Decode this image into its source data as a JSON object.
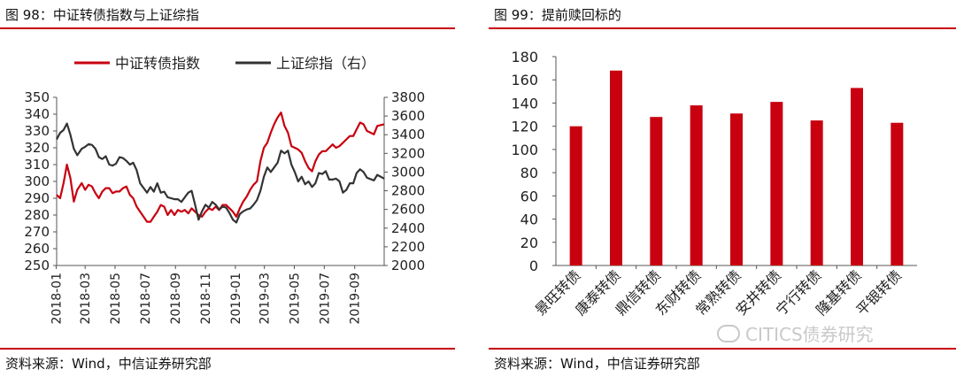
{
  "left": {
    "title": "图 98：中证转债指数与上证综指",
    "source": "资料来源：Wind，中信证券研究部"
  },
  "right": {
    "title": "图 99：提前赎回标的",
    "source": "资料来源：Wind，中信证券研究部",
    "watermark": "CITICS债券研究"
  },
  "colors": {
    "red": "#c8000f",
    "dark": "#333333",
    "rule": "#c8000f"
  },
  "chart_data": [
    {
      "type": "line",
      "title": "",
      "legend_position": "top",
      "x_tick_labels": [
        "2018-01",
        "2018-03",
        "2018-05",
        "2018-07",
        "2018-09",
        "2018-11",
        "2019-01",
        "2019-03",
        "2019-05",
        "2019-07",
        "2019-09"
      ],
      "x_range": [
        "2018-01-02",
        "2019-10-31"
      ],
      "ylim_left": [
        250,
        350
      ],
      "yticks_left": [
        "250",
        "260",
        "270",
        "280",
        "290",
        "300",
        "310",
        "320",
        "330",
        "340",
        "350"
      ],
      "ylim_right": [
        2000,
        3800
      ],
      "yticks_right": [
        "2000",
        "2200",
        "2400",
        "2600",
        "2800",
        "3000",
        "3200",
        "3400",
        "3600",
        "3800"
      ],
      "series": [
        {
          "name": "中证转债指数",
          "axis": "left",
          "color": "#c8000f",
          "points": [
            [
              "2018-01-02",
              292
            ],
            [
              "2018-01-09",
              290
            ],
            [
              "2018-01-16",
              299
            ],
            [
              "2018-01-23",
              310
            ],
            [
              "2018-01-30",
              302
            ],
            [
              "2018-02-06",
              288
            ],
            [
              "2018-02-13",
              295
            ],
            [
              "2018-02-22",
              299
            ],
            [
              "2018-03-01",
              295
            ],
            [
              "2018-03-08",
              298
            ],
            [
              "2018-03-15",
              297
            ],
            [
              "2018-03-22",
              293
            ],
            [
              "2018-03-29",
              290
            ],
            [
              "2018-04-05",
              294
            ],
            [
              "2018-04-12",
              296
            ],
            [
              "2018-04-19",
              296
            ],
            [
              "2018-04-26",
              293
            ],
            [
              "2018-05-03",
              294
            ],
            [
              "2018-05-10",
              294
            ],
            [
              "2018-05-17",
              296
            ],
            [
              "2018-05-24",
              297
            ],
            [
              "2018-05-31",
              292
            ],
            [
              "2018-06-07",
              290
            ],
            [
              "2018-06-14",
              285
            ],
            [
              "2018-06-21",
              282
            ],
            [
              "2018-06-28",
              279
            ],
            [
              "2018-07-05",
              276
            ],
            [
              "2018-07-12",
              276
            ],
            [
              "2018-07-19",
              279
            ],
            [
              "2018-07-26",
              282
            ],
            [
              "2018-08-02",
              286
            ],
            [
              "2018-08-09",
              285
            ],
            [
              "2018-08-16",
              280
            ],
            [
              "2018-08-23",
              283
            ],
            [
              "2018-08-30",
              280
            ],
            [
              "2018-09-06",
              283
            ],
            [
              "2018-09-13",
              282
            ],
            [
              "2018-09-20",
              283
            ],
            [
              "2018-09-27",
              281
            ],
            [
              "2018-10-04",
              284
            ],
            [
              "2018-10-11",
              282
            ],
            [
              "2018-10-18",
              280
            ],
            [
              "2018-10-25",
              279
            ],
            [
              "2018-11-01",
              282
            ],
            [
              "2018-11-08",
              284
            ],
            [
              "2018-11-15",
              283
            ],
            [
              "2018-11-22",
              285
            ],
            [
              "2018-11-29",
              283
            ],
            [
              "2018-12-06",
              286
            ],
            [
              "2018-12-13",
              286
            ],
            [
              "2018-12-20",
              284
            ],
            [
              "2018-12-27",
              282
            ],
            [
              "2019-01-03",
              279
            ],
            [
              "2019-01-10",
              284
            ],
            [
              "2019-01-17",
              288
            ],
            [
              "2019-01-24",
              291
            ],
            [
              "2019-01-31",
              295
            ],
            [
              "2019-02-07",
              298
            ],
            [
              "2019-02-14",
              300
            ],
            [
              "2019-02-21",
              312
            ],
            [
              "2019-02-28",
              320
            ],
            [
              "2019-03-07",
              323
            ],
            [
              "2019-03-14",
              329
            ],
            [
              "2019-03-21",
              334
            ],
            [
              "2019-03-28",
              338
            ],
            [
              "2019-04-04",
              341
            ],
            [
              "2019-04-11",
              333
            ],
            [
              "2019-04-18",
              329
            ],
            [
              "2019-04-25",
              321
            ],
            [
              "2019-05-02",
              320
            ],
            [
              "2019-05-09",
              319
            ],
            [
              "2019-05-16",
              317
            ],
            [
              "2019-05-23",
              312
            ],
            [
              "2019-05-30",
              308
            ],
            [
              "2019-06-06",
              306
            ],
            [
              "2019-06-13",
              312
            ],
            [
              "2019-06-20",
              316
            ],
            [
              "2019-06-27",
              318
            ],
            [
              "2019-07-04",
              318
            ],
            [
              "2019-07-11",
              320
            ],
            [
              "2019-07-18",
              322
            ],
            [
              "2019-07-25",
              320
            ],
            [
              "2019-08-01",
              321
            ],
            [
              "2019-08-08",
              323
            ],
            [
              "2019-08-15",
              325
            ],
            [
              "2019-08-22",
              327
            ],
            [
              "2019-08-29",
              327
            ],
            [
              "2019-09-05",
              331
            ],
            [
              "2019-09-12",
              335
            ],
            [
              "2019-09-19",
              334
            ],
            [
              "2019-09-26",
              330
            ],
            [
              "2019-10-10",
              328
            ],
            [
              "2019-10-17",
              333
            ],
            [
              "2019-10-31",
              334
            ]
          ]
        },
        {
          "name": "上证综指（右）",
          "axis": "right",
          "color": "#333333",
          "points": [
            [
              "2018-01-02",
              3350
            ],
            [
              "2018-01-09",
              3420
            ],
            [
              "2018-01-16",
              3450
            ],
            [
              "2018-01-23",
              3520
            ],
            [
              "2018-01-30",
              3400
            ],
            [
              "2018-02-06",
              3250
            ],
            [
              "2018-02-13",
              3180
            ],
            [
              "2018-02-22",
              3250
            ],
            [
              "2018-03-01",
              3270
            ],
            [
              "2018-03-08",
              3300
            ],
            [
              "2018-03-15",
              3290
            ],
            [
              "2018-03-22",
              3250
            ],
            [
              "2018-03-29",
              3160
            ],
            [
              "2018-04-05",
              3140
            ],
            [
              "2018-04-12",
              3170
            ],
            [
              "2018-04-19",
              3080
            ],
            [
              "2018-04-26",
              3070
            ],
            [
              "2018-05-03",
              3090
            ],
            [
              "2018-05-10",
              3160
            ],
            [
              "2018-05-17",
              3150
            ],
            [
              "2018-05-24",
              3120
            ],
            [
              "2018-05-31",
              3080
            ],
            [
              "2018-06-07",
              3100
            ],
            [
              "2018-06-14",
              3020
            ],
            [
              "2018-06-21",
              2880
            ],
            [
              "2018-06-28",
              2830
            ],
            [
              "2018-07-05",
              2780
            ],
            [
              "2018-07-12",
              2840
            ],
            [
              "2018-07-19",
              2790
            ],
            [
              "2018-07-26",
              2880
            ],
            [
              "2018-08-02",
              2780
            ],
            [
              "2018-08-09",
              2790
            ],
            [
              "2018-08-16",
              2730
            ],
            [
              "2018-08-23",
              2720
            ],
            [
              "2018-08-30",
              2710
            ],
            [
              "2018-09-06",
              2710
            ],
            [
              "2018-09-13",
              2680
            ],
            [
              "2018-09-20",
              2730
            ],
            [
              "2018-09-27",
              2780
            ],
            [
              "2018-10-04",
              2800
            ],
            [
              "2018-10-11",
              2650
            ],
            [
              "2018-10-18",
              2490
            ],
            [
              "2018-10-25",
              2580
            ],
            [
              "2018-11-01",
              2650
            ],
            [
              "2018-11-08",
              2620
            ],
            [
              "2018-11-15",
              2680
            ],
            [
              "2018-11-22",
              2650
            ],
            [
              "2018-11-29",
              2600
            ],
            [
              "2018-12-06",
              2630
            ],
            [
              "2018-12-13",
              2620
            ],
            [
              "2018-12-20",
              2560
            ],
            [
              "2018-12-27",
              2490
            ],
            [
              "2019-01-03",
              2460
            ],
            [
              "2019-01-10",
              2550
            ],
            [
              "2019-01-17",
              2580
            ],
            [
              "2019-01-24",
              2600
            ],
            [
              "2019-01-31",
              2610
            ],
            [
              "2019-02-07",
              2650
            ],
            [
              "2019-02-14",
              2700
            ],
            [
              "2019-02-21",
              2800
            ],
            [
              "2019-02-28",
              2950
            ],
            [
              "2019-03-07",
              3050
            ],
            [
              "2019-03-14",
              3000
            ],
            [
              "2019-03-21",
              3050
            ],
            [
              "2019-03-28",
              3100
            ],
            [
              "2019-04-04",
              3230
            ],
            [
              "2019-04-11",
              3200
            ],
            [
              "2019-04-18",
              3230
            ],
            [
              "2019-04-25",
              3080
            ],
            [
              "2019-05-02",
              3000
            ],
            [
              "2019-05-09",
              2900
            ],
            [
              "2019-05-16",
              2950
            ],
            [
              "2019-05-23",
              2870
            ],
            [
              "2019-05-30",
              2900
            ],
            [
              "2019-06-06",
              2840
            ],
            [
              "2019-06-13",
              2880
            ],
            [
              "2019-06-20",
              2990
            ],
            [
              "2019-06-27",
              2980
            ],
            [
              "2019-07-04",
              3010
            ],
            [
              "2019-07-11",
              2920
            ],
            [
              "2019-07-18",
              2920
            ],
            [
              "2019-07-25",
              2930
            ],
            [
              "2019-08-01",
              2900
            ],
            [
              "2019-08-08",
              2780
            ],
            [
              "2019-08-15",
              2810
            ],
            [
              "2019-08-22",
              2880
            ],
            [
              "2019-08-29",
              2880
            ],
            [
              "2019-09-05",
              2990
            ],
            [
              "2019-09-12",
              3030
            ],
            [
              "2019-09-19",
              3000
            ],
            [
              "2019-09-26",
              2940
            ],
            [
              "2019-10-10",
              2910
            ],
            [
              "2019-10-17",
              2970
            ],
            [
              "2019-10-31",
              2930
            ]
          ]
        }
      ]
    },
    {
      "type": "bar",
      "title": "",
      "categories": [
        "景旺转债",
        "康泰转债",
        "鼎信转债",
        "东财转债",
        "常熟转债",
        "安井转债",
        "宁行转债",
        "隆基转债",
        "平银转债"
      ],
      "values": [
        120,
        168,
        128,
        138,
        131,
        141,
        125,
        153,
        123
      ],
      "ylim": [
        0,
        180
      ],
      "yticks": [
        "0",
        "20",
        "40",
        "60",
        "80",
        "100",
        "120",
        "140",
        "160",
        "180"
      ],
      "bar_color": "#c8000f",
      "grid": false
    }
  ]
}
